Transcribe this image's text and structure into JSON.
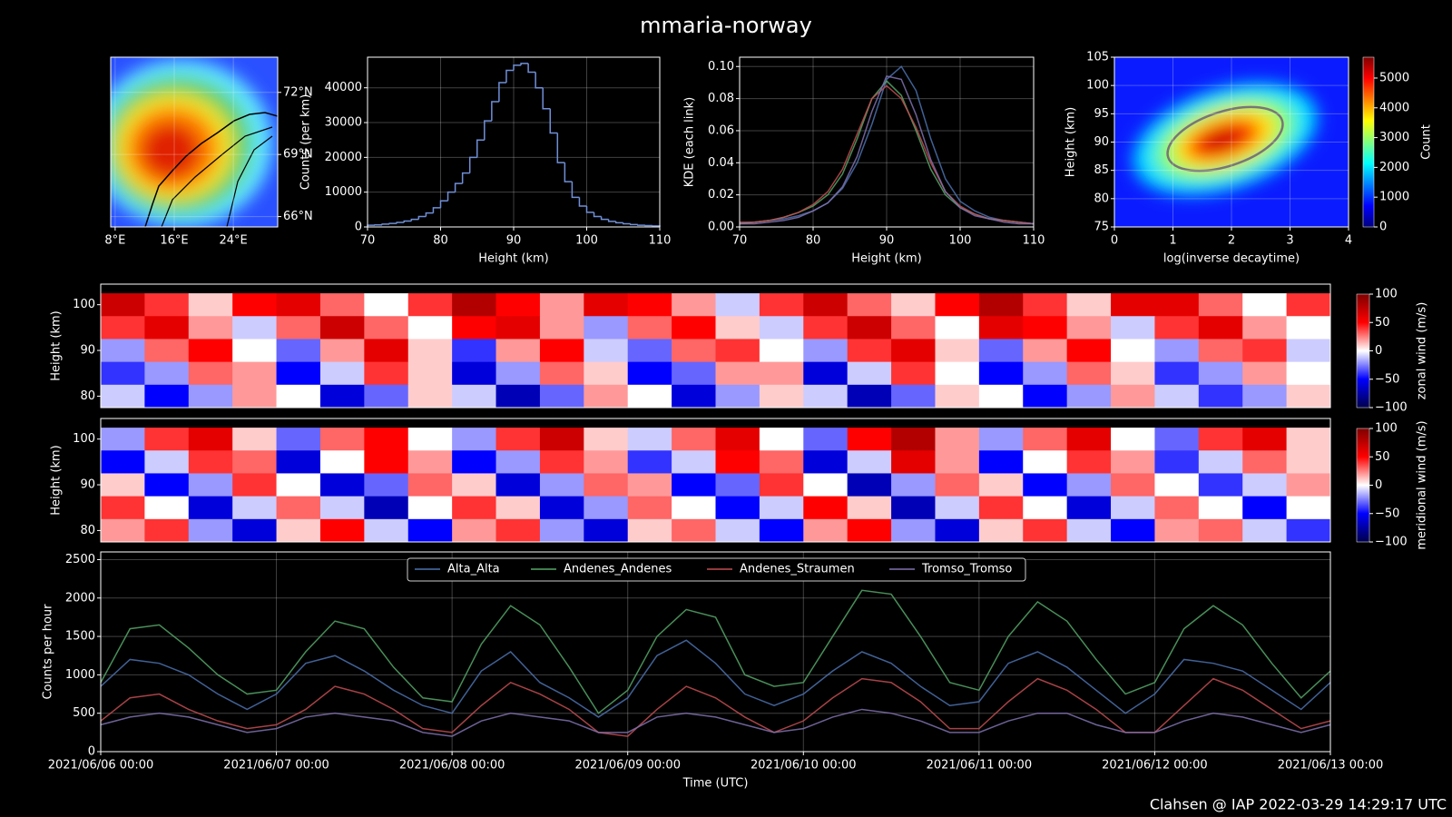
{
  "title": "mmaria-norway",
  "footer": "Clahsen @ IAP 2022-03-29 14:29:17 UTC",
  "chart_data": [
    {
      "type": "map",
      "xlim": [
        7.4,
        30
      ],
      "ylim": [
        65.5,
        73.7
      ],
      "xticks": [
        {
          "value": 8,
          "label": "8°E"
        },
        {
          "value": 16,
          "label": "16°E"
        },
        {
          "value": 24,
          "label": "24°E"
        }
      ],
      "yticks": [
        {
          "value": 66,
          "label": "66°N"
        },
        {
          "value": 69,
          "label": "69°N"
        },
        {
          "value": 72,
          "label": "72°N"
        }
      ],
      "grid": true
    },
    {
      "type": "histogram",
      "bins": [
        70,
        71,
        72,
        73,
        74,
        75,
        76,
        77,
        78,
        79,
        80,
        81,
        82,
        83,
        84,
        85,
        86,
        87,
        88,
        89,
        90,
        91,
        92,
        93,
        94,
        95,
        96,
        97,
        98,
        99,
        100,
        101,
        102,
        103,
        104,
        105,
        106,
        107,
        108,
        109,
        110
      ],
      "values": [
        500,
        600,
        800,
        1000,
        1300,
        1700,
        2200,
        3000,
        4000,
        5500,
        7500,
        10000,
        12500,
        15500,
        20000,
        25000,
        30500,
        36000,
        41500,
        45000,
        46500,
        47000,
        44500,
        40000,
        34000,
        27000,
        18500,
        13000,
        8500,
        6000,
        4200,
        3000,
        2200,
        1600,
        1200,
        900,
        700,
        500,
        400,
        300
      ],
      "color": "#6f8fd8",
      "xlim": [
        70,
        110
      ],
      "ylim": [
        0,
        48800
      ],
      "xticks": [
        70,
        80,
        90,
        100,
        110
      ],
      "yticks": [
        0,
        10000,
        20000,
        30000,
        40000
      ],
      "xlabel": "Height (km)",
      "ylabel": "Counts (per km)",
      "grid": true
    },
    {
      "type": "line",
      "x": [
        70,
        72,
        74,
        76,
        78,
        80,
        82,
        84,
        86,
        88,
        90,
        92,
        94,
        96,
        98,
        100,
        102,
        104,
        106,
        108,
        110
      ],
      "series": [
        {
          "color": "#4c72b0",
          "values": [
            0.002,
            0.003,
            0.004,
            0.005,
            0.007,
            0.01,
            0.015,
            0.024,
            0.04,
            0.064,
            0.092,
            0.1,
            0.085,
            0.055,
            0.03,
            0.016,
            0.01,
            0.006,
            0.004,
            0.003,
            0.002
          ]
        },
        {
          "color": "#55a868",
          "values": [
            0.002,
            0.003,
            0.004,
            0.006,
            0.009,
            0.013,
            0.02,
            0.033,
            0.055,
            0.08,
            0.091,
            0.082,
            0.06,
            0.036,
            0.02,
            0.012,
            0.008,
            0.005,
            0.004,
            0.003,
            0.002
          ]
        },
        {
          "color": "#c44e52",
          "values": [
            0.003,
            0.003,
            0.004,
            0.006,
            0.009,
            0.014,
            0.022,
            0.036,
            0.058,
            0.08,
            0.088,
            0.08,
            0.062,
            0.04,
            0.022,
            0.013,
            0.008,
            0.005,
            0.004,
            0.003,
            0.002
          ]
        },
        {
          "color": "#8172b2",
          "values": [
            0.002,
            0.002,
            0.003,
            0.004,
            0.006,
            0.01,
            0.015,
            0.025,
            0.044,
            0.072,
            0.094,
            0.092,
            0.07,
            0.042,
            0.022,
            0.012,
            0.007,
            0.005,
            0.003,
            0.002,
            0.002
          ]
        }
      ],
      "xlim": [
        70,
        110
      ],
      "ylim": [
        0,
        0.1058
      ],
      "xticks": [
        70,
        80,
        90,
        100,
        110
      ],
      "yticks": [
        {
          "value": 0,
          "label": "0.00"
        },
        {
          "value": 0.02,
          "label": "0.02"
        },
        {
          "value": 0.04,
          "label": "0.04"
        },
        {
          "value": 0.06,
          "label": "0.06"
        },
        {
          "value": 0.08,
          "label": "0.08"
        },
        {
          "value": 0.1,
          "label": "0.10"
        }
      ],
      "xlabel": "Height (km)",
      "ylabel": "KDE (each link)",
      "grid": true
    },
    {
      "type": "hist2d",
      "xlim": [
        0,
        4
      ],
      "ylim": [
        75,
        105
      ],
      "xticks": [
        0,
        1,
        2,
        3,
        4
      ],
      "yticks": [
        75,
        80,
        85,
        90,
        95,
        100,
        105
      ],
      "xlabel": "log(inverse decaytime)",
      "ylabel": "Height (km)",
      "grid": true,
      "colorbar": {
        "label": "Count",
        "lim": [
          0,
          5700
        ],
        "ticks": [
          0,
          1000,
          2000,
          3000,
          4000,
          5000
        ]
      }
    },
    {
      "type": "heatmap",
      "xlim": [
        "2021/06/06 00:00",
        "2021/06/13 00:00"
      ],
      "ylim": [
        77.5,
        104.5
      ],
      "yticks": [
        80,
        90,
        100
      ],
      "ylabel": "Height (km)",
      "y": [
        100,
        95,
        90,
        85,
        80
      ],
      "z": [
        [
          70,
          40,
          10,
          50,
          60,
          30,
          0,
          40,
          80,
          50,
          20,
          60,
          50,
          20,
          -10,
          40,
          70,
          30,
          10,
          50,
          80,
          40,
          10,
          60,
          60,
          30,
          0,
          40
        ],
        [
          40,
          60,
          20,
          -10,
          30,
          70,
          30,
          0,
          50,
          60,
          20,
          -20,
          30,
          50,
          10,
          -10,
          40,
          70,
          30,
          0,
          60,
          50,
          20,
          -10,
          40,
          60,
          20,
          0
        ],
        [
          -20,
          30,
          50,
          0,
          -30,
          20,
          60,
          10,
          -40,
          20,
          50,
          -10,
          -30,
          30,
          40,
          0,
          -20,
          40,
          60,
          10,
          -30,
          20,
          50,
          0,
          -20,
          30,
          40,
          -10
        ],
        [
          -40,
          -20,
          30,
          20,
          -50,
          -10,
          40,
          10,
          -60,
          -20,
          30,
          10,
          -50,
          -30,
          20,
          20,
          -60,
          -10,
          40,
          0,
          -50,
          -20,
          30,
          10,
          -40,
          -20,
          20,
          0
        ],
        [
          -10,
          -50,
          -20,
          20,
          0,
          -60,
          -30,
          10,
          -10,
          -70,
          -30,
          20,
          0,
          -60,
          -20,
          10,
          -10,
          -70,
          -30,
          10,
          0,
          -50,
          -20,
          20,
          -10,
          -40,
          -20,
          10
        ]
      ],
      "colorbar": {
        "label": "zonal wind (m/s)",
        "lim": [
          -100,
          100
        ],
        "ticks": [
          {
            "value": -100,
            "label": "−100"
          },
          {
            "value": -50,
            "label": "−50"
          },
          0,
          50,
          100
        ]
      }
    },
    {
      "type": "heatmap",
      "xlim": [
        "2021/06/06 00:00",
        "2021/06/13 00:00"
      ],
      "ylim": [
        77.5,
        104.5
      ],
      "yticks": [
        80,
        90,
        100
      ],
      "ylabel": "Height (km)",
      "y": [
        100,
        95,
        90,
        85,
        80
      ],
      "z": [
        [
          -20,
          40,
          60,
          10,
          -30,
          30,
          50,
          0,
          -20,
          40,
          70,
          10,
          -10,
          30,
          60,
          0,
          -30,
          50,
          80,
          20,
          -20,
          30,
          60,
          0,
          -30,
          40,
          60,
          10
        ],
        [
          -50,
          -10,
          40,
          30,
          -60,
          0,
          50,
          20,
          -50,
          -20,
          40,
          20,
          -40,
          -10,
          50,
          30,
          -60,
          -10,
          60,
          20,
          -50,
          0,
          40,
          20,
          -40,
          -10,
          30,
          10
        ],
        [
          10,
          -50,
          -20,
          40,
          0,
          -60,
          -30,
          30,
          10,
          -60,
          -20,
          30,
          20,
          -50,
          -30,
          40,
          0,
          -70,
          -20,
          30,
          10,
          -50,
          -20,
          30,
          0,
          -40,
          -10,
          20
        ],
        [
          40,
          0,
          -60,
          -10,
          30,
          -10,
          -70,
          0,
          40,
          10,
          -60,
          -20,
          30,
          0,
          -50,
          -10,
          50,
          10,
          -70,
          -10,
          40,
          0,
          -60,
          -10,
          30,
          0,
          -50,
          0
        ],
        [
          20,
          40,
          -20,
          -60,
          10,
          50,
          -10,
          -50,
          20,
          40,
          -20,
          -60,
          10,
          30,
          -10,
          -50,
          20,
          50,
          -20,
          -60,
          10,
          40,
          -10,
          -50,
          20,
          30,
          -10,
          -40
        ]
      ],
      "colorbar": {
        "label": "meridional wind (m/s)",
        "lim": [
          -100,
          100
        ],
        "ticks": [
          {
            "value": -100,
            "label": "−100"
          },
          {
            "value": -50,
            "label": "−50"
          },
          0,
          50,
          100
        ]
      }
    },
    {
      "type": "line",
      "legend": "upper center",
      "grid": true,
      "x": [
        "2021/06/06 00:00",
        "2021/06/06 04:00",
        "2021/06/06 08:00",
        "2021/06/06 12:00",
        "2021/06/06 16:00",
        "2021/06/06 20:00",
        "2021/06/07 00:00",
        "2021/06/07 04:00",
        "2021/06/07 08:00",
        "2021/06/07 12:00",
        "2021/06/07 16:00",
        "2021/06/07 20:00",
        "2021/06/08 00:00",
        "2021/06/08 04:00",
        "2021/06/08 08:00",
        "2021/06/08 12:00",
        "2021/06/08 16:00",
        "2021/06/08 20:00",
        "2021/06/09 00:00",
        "2021/06/09 04:00",
        "2021/06/09 08:00",
        "2021/06/09 12:00",
        "2021/06/09 16:00",
        "2021/06/09 20:00",
        "2021/06/10 00:00",
        "2021/06/10 04:00",
        "2021/06/10 08:00",
        "2021/06/10 12:00",
        "2021/06/10 16:00",
        "2021/06/10 20:00",
        "2021/06/11 00:00",
        "2021/06/11 04:00",
        "2021/06/11 08:00",
        "2021/06/11 12:00",
        "2021/06/11 16:00",
        "2021/06/11 20:00",
        "2021/06/12 00:00",
        "2021/06/12 04:00",
        "2021/06/12 08:00",
        "2021/06/12 12:00",
        "2021/06/12 16:00",
        "2021/06/12 20:00",
        "2021/06/13 00:00"
      ],
      "series": [
        {
          "name": "Alta_Alta",
          "color": "#4c72b0",
          "values": [
            850,
            1200,
            1150,
            1000,
            750,
            550,
            750,
            1150,
            1250,
            1050,
            800,
            600,
            500,
            1050,
            1300,
            900,
            700,
            450,
            700,
            1250,
            1450,
            1150,
            750,
            600,
            750,
            1050,
            1300,
            1150,
            850,
            600,
            650,
            1150,
            1300,
            1100,
            800,
            500,
            750,
            1200,
            1150,
            1050,
            800,
            550,
            900
          ]
        },
        {
          "name": "Andenes_Andenes",
          "color": "#55a868",
          "values": [
            900,
            1600,
            1650,
            1350,
            1000,
            750,
            800,
            1300,
            1700,
            1600,
            1100,
            700,
            650,
            1400,
            1900,
            1650,
            1100,
            500,
            800,
            1500,
            1850,
            1750,
            1000,
            850,
            900,
            1500,
            2100,
            2050,
            1500,
            900,
            800,
            1500,
            1950,
            1700,
            1200,
            750,
            900,
            1600,
            1900,
            1650,
            1150,
            700,
            1050
          ]
        },
        {
          "name": "Andenes_Straumen",
          "color": "#c44e52",
          "values": [
            400,
            700,
            750,
            550,
            400,
            300,
            350,
            550,
            850,
            750,
            550,
            300,
            250,
            600,
            900,
            750,
            550,
            250,
            200,
            550,
            850,
            700,
            450,
            250,
            400,
            700,
            950,
            900,
            650,
            300,
            300,
            650,
            950,
            800,
            550,
            250,
            250,
            600,
            950,
            800,
            550,
            300,
            400
          ]
        },
        {
          "name": "Tromso_Tromso",
          "color": "#8172b2",
          "values": [
            350,
            450,
            500,
            450,
            350,
            250,
            300,
            450,
            500,
            450,
            400,
            250,
            200,
            400,
            500,
            450,
            400,
            250,
            250,
            450,
            500,
            450,
            350,
            250,
            300,
            450,
            550,
            500,
            400,
            250,
            250,
            400,
            500,
            500,
            350,
            250,
            250,
            400,
            500,
            450,
            350,
            250,
            350
          ]
        }
      ],
      "xlim": [
        "2021/06/06 00:00",
        "2021/06/13 00:00"
      ],
      "ylim": [
        0,
        2600
      ],
      "xticks": [
        "2021/06/06 00:00",
        "2021/06/07 00:00",
        "2021/06/08 00:00",
        "2021/06/09 00:00",
        "2021/06/10 00:00",
        "2021/06/11 00:00",
        "2021/06/12 00:00",
        "2021/06/13 00:00"
      ],
      "yticks": [
        0,
        500,
        1000,
        1500,
        2000,
        2500
      ],
      "xlabel": "Time (UTC)",
      "ylabel": "Counts per hour"
    }
  ]
}
